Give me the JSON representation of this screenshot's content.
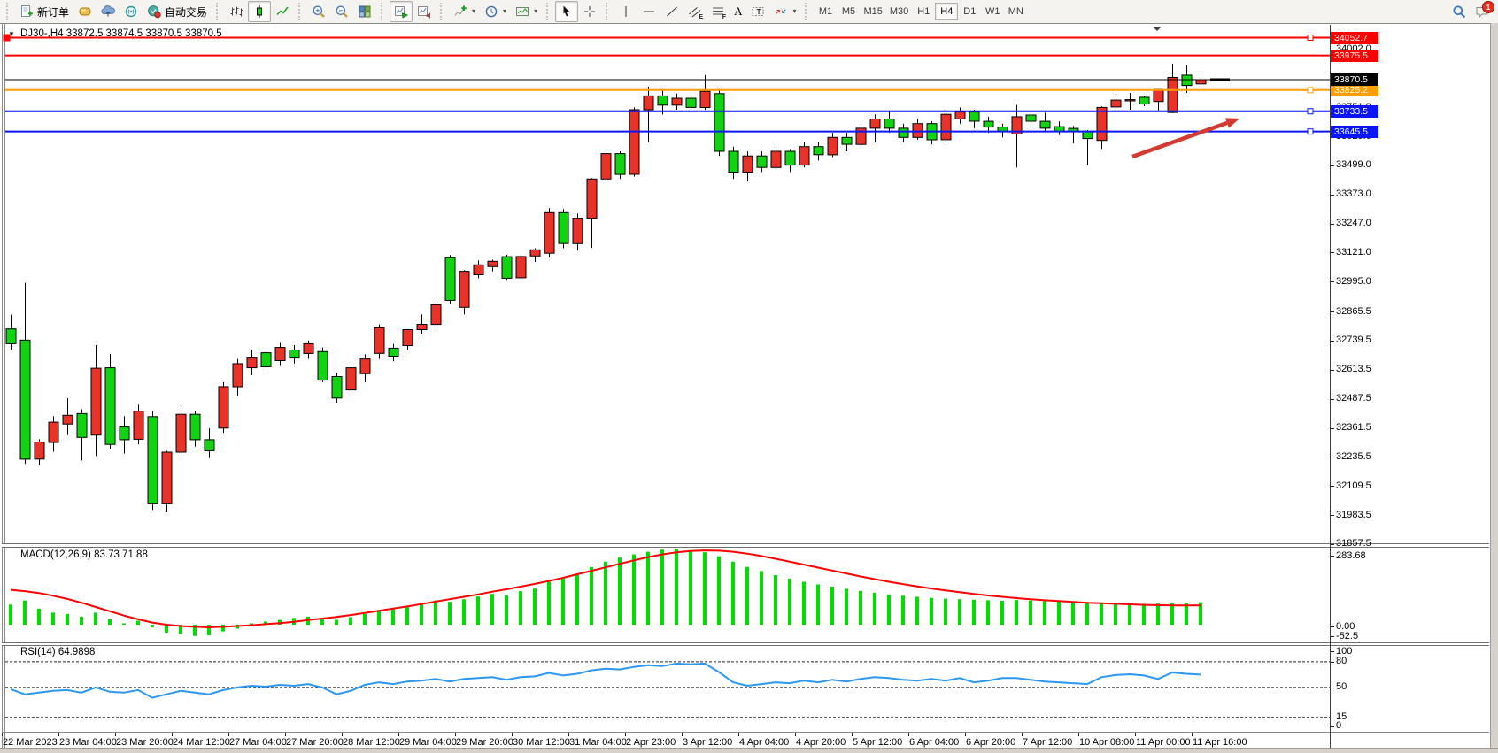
{
  "toolbar": {
    "new_order_label": "新订单",
    "auto_trading_label": "自动交易",
    "timeframes": [
      "M1",
      "M5",
      "M15",
      "M30",
      "H1",
      "H4",
      "D1",
      "W1",
      "MN"
    ],
    "active_timeframe": "H4",
    "notification_count": "1"
  },
  "glyphs": {
    "dropdown": "▾",
    "title_marker": "▼",
    "text_tool": "A",
    "label_tool": "T",
    "channel_tool": "E",
    "fib_tool": "F"
  },
  "pane_labels": {
    "main_title": "DJ30-,H4 33872.5 33874.5 33870.5 33870.5",
    "macd": "MACD(12,26,9) 83.73 71.88",
    "rsi": "RSI(14) 64.9898"
  },
  "colors": {
    "up": "#e8332a",
    "down": "#12d312",
    "macd_hist": "#00dc00",
    "macd_signal": "#ff0000",
    "rsi_line": "#2b97f3",
    "bid": "#000000",
    "arrow": "#d53a30"
  },
  "chart_data": {
    "type": "candlestick",
    "symbol": "DJ30-",
    "period": "H4",
    "title_ohlc": [
      33872.5,
      33874.5,
      33870.5,
      33870.5
    ],
    "bid": 33870.5,
    "candles": [
      [
        32790,
        32852,
        32700,
        32726
      ],
      [
        32742,
        32990,
        32205,
        32226
      ],
      [
        32226,
        32312,
        32200,
        32300
      ],
      [
        32298,
        32412,
        32258,
        32386
      ],
      [
        32378,
        32490,
        32330,
        32416
      ],
      [
        32423,
        32442,
        32220,
        32320
      ],
      [
        32330,
        32720,
        32240,
        32620
      ],
      [
        32622,
        32682,
        32270,
        32290
      ],
      [
        32365,
        32412,
        32250,
        32310
      ],
      [
        32312,
        32462,
        32290,
        32434
      ],
      [
        32410,
        32434,
        32005,
        32032
      ],
      [
        32032,
        32262,
        31995,
        32256
      ],
      [
        32256,
        32440,
        32230,
        32420
      ],
      [
        32420,
        32436,
        32280,
        32310
      ],
      [
        32310,
        32360,
        32230,
        32262
      ],
      [
        32360,
        32560,
        32340,
        32540
      ],
      [
        32540,
        32660,
        32500,
        32640
      ],
      [
        32622,
        32700,
        32590,
        32664
      ],
      [
        32687,
        32710,
        32600,
        32626
      ],
      [
        32653,
        32730,
        32630,
        32710
      ],
      [
        32699,
        32720,
        32640,
        32664
      ],
      [
        32684,
        32740,
        32660,
        32726
      ],
      [
        32692,
        32710,
        32560,
        32568
      ],
      [
        32584,
        32600,
        32470,
        32491
      ],
      [
        32526,
        32640,
        32500,
        32622
      ],
      [
        32596,
        32680,
        32560,
        32660
      ],
      [
        32684,
        32810,
        32660,
        32795
      ],
      [
        32707,
        32725,
        32650,
        32672
      ],
      [
        32718,
        32790,
        32700,
        32787
      ],
      [
        32787,
        32853,
        32770,
        32810
      ],
      [
        32810,
        32900,
        32800,
        32895
      ],
      [
        33099,
        33110,
        32900,
        32914
      ],
      [
        32884,
        33045,
        32853,
        33040
      ],
      [
        33025,
        33087,
        33010,
        33068
      ],
      [
        33060,
        33090,
        33040,
        33083
      ],
      [
        33103,
        33112,
        32999,
        33010
      ],
      [
        33012,
        33110,
        33005,
        33104
      ],
      [
        33106,
        33140,
        33080,
        33133
      ],
      [
        33118,
        33314,
        33100,
        33294
      ],
      [
        33294,
        33310,
        33140,
        33160
      ],
      [
        33160,
        33290,
        33130,
        33270
      ],
      [
        33270,
        33444,
        33141,
        33440
      ],
      [
        33440,
        33560,
        33420,
        33550
      ],
      [
        33550,
        33560,
        33440,
        33460
      ],
      [
        33460,
        33750,
        33450,
        33740
      ],
      [
        33740,
        33840,
        33600,
        33800
      ],
      [
        33800,
        33830,
        33720,
        33760
      ],
      [
        33760,
        33810,
        33740,
        33790
      ],
      [
        33790,
        33800,
        33730,
        33750
      ],
      [
        33750,
        33890,
        33740,
        33820
      ],
      [
        33810,
        33830,
        33540,
        33560
      ],
      [
        33560,
        33580,
        33440,
        33470
      ],
      [
        33470,
        33560,
        33430,
        33540
      ],
      [
        33540,
        33560,
        33470,
        33490
      ],
      [
        33490,
        33580,
        33480,
        33560
      ],
      [
        33560,
        33570,
        33470,
        33500
      ],
      [
        33500,
        33600,
        33490,
        33580
      ],
      [
        33580,
        33600,
        33520,
        33545
      ],
      [
        33545,
        33640,
        33535,
        33620
      ],
      [
        33620,
        33640,
        33560,
        33590
      ],
      [
        33590,
        33680,
        33580,
        33660
      ],
      [
        33660,
        33720,
        33600,
        33700
      ],
      [
        33700,
        33730,
        33640,
        33660
      ],
      [
        33660,
        33680,
        33600,
        33620
      ],
      [
        33620,
        33700,
        33610,
        33680
      ],
      [
        33680,
        33690,
        33590,
        33610
      ],
      [
        33610,
        33740,
        33600,
        33720
      ],
      [
        33700,
        33750,
        33680,
        33730
      ],
      [
        33730,
        33740,
        33660,
        33690
      ],
      [
        33690,
        33710,
        33640,
        33665
      ],
      [
        33665,
        33680,
        33620,
        33645
      ],
      [
        33635,
        33760,
        33490,
        33710
      ],
      [
        33717,
        33725,
        33652,
        33690
      ],
      [
        33690,
        33728,
        33650,
        33660
      ],
      [
        33667,
        33690,
        33630,
        33645
      ],
      [
        33659,
        33670,
        33594,
        33645
      ],
      [
        33645,
        33652,
        33500,
        33615
      ],
      [
        33607,
        33755,
        33570,
        33750
      ],
      [
        33752,
        33790,
        33735,
        33782
      ],
      [
        33780,
        33813,
        33740,
        33784
      ],
      [
        33794,
        33800,
        33755,
        33765
      ],
      [
        33776,
        33830,
        33736,
        33828
      ],
      [
        33728,
        33940,
        33725,
        33880
      ],
      [
        33890,
        33932,
        33813,
        33845
      ],
      [
        33852,
        33890,
        33832,
        33870.5
      ]
    ],
    "hlines": [
      {
        "price": 34052.7,
        "label": "34052.7",
        "color": "#ff0000",
        "width": 2,
        "left_handle": true,
        "right_handle": true
      },
      {
        "price": 33975.5,
        "label": "33975.5",
        "color": "#ff0000",
        "width": 2,
        "left_handle": false,
        "right_handle": false
      },
      {
        "price": 33825.2,
        "label": "33825.2",
        "color": "#ff9d00",
        "width": 2,
        "left_handle": false,
        "right_handle": true
      },
      {
        "price": 33733.5,
        "label": "33733.5",
        "color": "#0a16f5",
        "width": 2,
        "left_handle": false,
        "right_handle": true
      },
      {
        "price": 33645.5,
        "label": "33645.5",
        "color": "#0a16f5",
        "width": 2,
        "left_handle": false,
        "right_handle": true
      }
    ],
    "price_ticks": [
      {
        "label": "34002.0",
        "price": 34002.0
      },
      {
        "label": "33751.8",
        "price": 33751.8
      },
      {
        "label": "33625.0",
        "price": 33625.0
      },
      {
        "label": "33499.0",
        "price": 33499.0
      },
      {
        "label": "33373.0",
        "price": 33373.0
      },
      {
        "label": "33247.0",
        "price": 33247.0
      },
      {
        "label": "33121.0",
        "price": 33121.0
      },
      {
        "label": "32995.0",
        "price": 32995.0
      },
      {
        "label": "32865.5",
        "price": 32865.5
      },
      {
        "label": "32739.5",
        "price": 32739.5
      },
      {
        "label": "32613.5",
        "price": 32613.5
      },
      {
        "label": "32487.5",
        "price": 32487.5
      },
      {
        "label": "32361.5",
        "price": 32361.5
      },
      {
        "label": "32235.5",
        "price": 32235.5
      },
      {
        "label": "32109.5",
        "price": 32109.5
      },
      {
        "label": "31983.5",
        "price": 31983.5
      },
      {
        "label": "31857.5",
        "price": 31857.5
      }
    ],
    "time_labels": [
      "22 Mar 2023",
      "23 Mar 04:00",
      "23 Mar 20:00",
      "24 Mar 12:00",
      "27 Mar 04:00",
      "27 Mar 20:00",
      "28 Mar 12:00",
      "29 Mar 04:00",
      "29 Mar 20:00",
      "30 Mar 12:00",
      "31 Mar 04:00",
      "2 Apr 23:00",
      "3 Apr 12:00",
      "4 Apr 04:00",
      "4 Apr 20:00",
      "5 Apr 12:00",
      "6 Apr 04:00",
      "6 Apr 20:00",
      "7 Apr 12:00",
      "10 Apr 08:00",
      "11 Apr 00:00",
      "11 Apr 16:00"
    ],
    "macd": {
      "label": "MACD(12,26,9) 83.73 71.88",
      "params": "12,26,9",
      "main_value": 83.73,
      "signal_value": 71.88,
      "scale_max": "283.68",
      "scale_zero": "0.00",
      "scale_min": "-52.5",
      "hist": [
        75,
        90,
        60,
        45,
        40,
        30,
        45,
        20,
        5,
        15,
        -10,
        -30,
        -35,
        -42,
        -40,
        -25,
        -15,
        5,
        12,
        18,
        25,
        30,
        22,
        18,
        28,
        40,
        55,
        60,
        70,
        80,
        90,
        85,
        95,
        105,
        115,
        110,
        125,
        135,
        160,
        175,
        190,
        215,
        235,
        250,
        262,
        272,
        280,
        283.7,
        278,
        270,
        255,
        235,
        215,
        200,
        185,
        172,
        160,
        150,
        142,
        134,
        126,
        119,
        113,
        108,
        104,
        100,
        97,
        95,
        93,
        91,
        89,
        92,
        90,
        88,
        86,
        84,
        82,
        80,
        79,
        78,
        78,
        79,
        80,
        82,
        83.7
      ],
      "signal": [
        130,
        125,
        118,
        108,
        96,
        82,
        66,
        50,
        34,
        20,
        8,
        0,
        -5,
        -8,
        -10,
        -8,
        -5,
        -2,
        2,
        6,
        11,
        17,
        23,
        29,
        36,
        44,
        52,
        60,
        68,
        77,
        86,
        95,
        104,
        113,
        123,
        132,
        142,
        152,
        163,
        175,
        188,
        201,
        214,
        227,
        240,
        252,
        262,
        270,
        275,
        277,
        276,
        272,
        265,
        256,
        246,
        235,
        224,
        213,
        202,
        191,
        180,
        170,
        160,
        151,
        143,
        135,
        128,
        121,
        115,
        109,
        104,
        99,
        95,
        91,
        88,
        85,
        82,
        80,
        78,
        76,
        74,
        73,
        72,
        72,
        71.9
      ]
    },
    "rsi": {
      "label": "RSI(14) 64.9898",
      "period": 14,
      "value": 64.9898,
      "levels": [
        100,
        80,
        50,
        15,
        0
      ],
      "values": [
        48,
        42,
        44,
        46,
        47,
        44,
        50,
        45,
        44,
        47,
        38,
        42,
        46,
        44,
        42,
        47,
        50,
        52,
        51,
        53,
        52,
        54,
        50,
        42,
        46,
        53,
        56,
        54,
        57,
        58,
        60,
        57,
        60,
        61,
        62,
        59,
        62,
        63,
        67,
        64,
        66,
        70,
        72,
        71,
        74,
        76,
        75,
        78,
        77,
        78,
        68,
        56,
        52,
        54,
        56,
        55,
        58,
        56,
        59,
        57,
        60,
        62,
        61,
        59,
        58,
        60,
        58,
        61,
        56,
        58,
        61,
        61,
        59,
        57,
        56,
        55,
        54,
        62,
        64.5,
        65.5,
        64,
        60,
        67.5,
        66,
        65
      ]
    },
    "annotation_arrow": {
      "from": [
        1279,
        177
      ],
      "to": [
        1400,
        134
      ]
    }
  }
}
